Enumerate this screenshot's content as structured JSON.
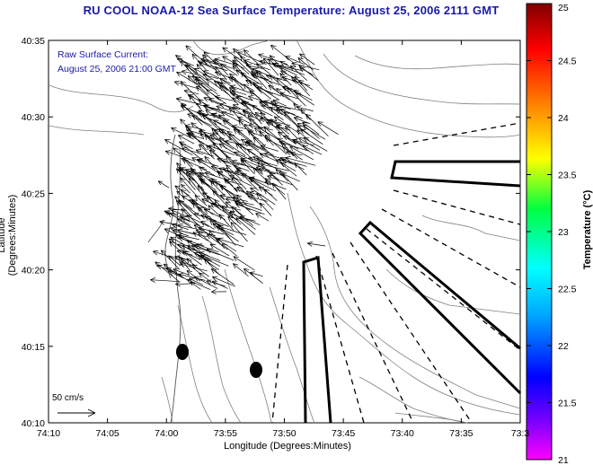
{
  "title": "RU COOL  NOAA-12  Sea Surface Temperature:  August 25, 2006 2111 GMT",
  "legend": {
    "line1": "Raw Surface Current:",
    "line2": "August 25, 2006 21:00 GMT"
  },
  "axes": {
    "xlabel": "Longitude (Degrees:Minutes)",
    "ylabel": "Latitude (Degrees:Minutes)",
    "x_ticks": [
      "74:10",
      "74:05",
      "74:00",
      "73:55",
      "73:50",
      "73:45",
      "73:40",
      "73:35",
      "73:3"
    ],
    "y_ticks": [
      "40:35",
      "40:30",
      "40:25",
      "40:20",
      "40:15",
      "40:10"
    ]
  },
  "scale_label": "50 cm/s",
  "colorbar": {
    "label": "Temperature (°C)",
    "ticks": [
      "25",
      "24.5",
      "24",
      "23.5",
      "23",
      "22.5",
      "22",
      "21.5",
      "21"
    ]
  }
}
